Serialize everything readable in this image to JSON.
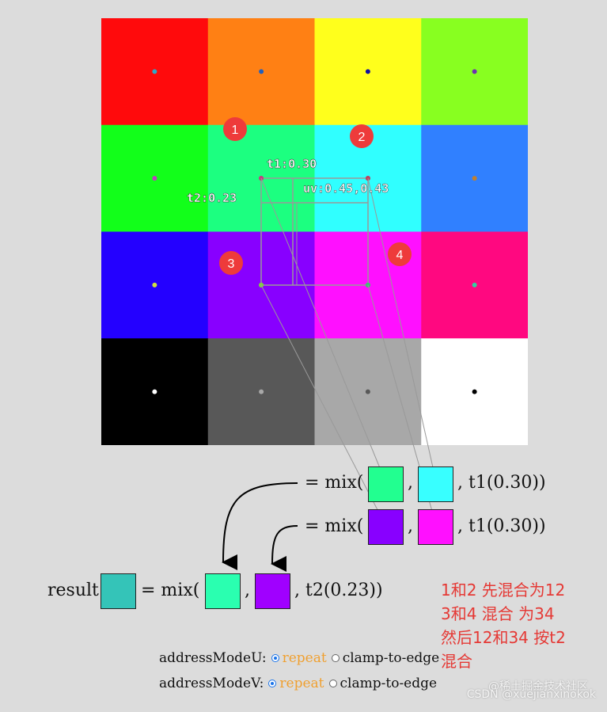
{
  "grid": {
    "rows": 4,
    "cols": 4,
    "cells": [
      {
        "color": "#ff0a0c",
        "dot": "#2fa8c8"
      },
      {
        "color": "#ff8014",
        "dot": "#2060c0"
      },
      {
        "color": "#ffff1c",
        "dot": "#1010a0"
      },
      {
        "color": "#88ff20",
        "dot": "#7030b0"
      },
      {
        "color": "#12ff1a",
        "dot": "#c040c0"
      },
      {
        "color": "#1cff80",
        "dot": "#c04080"
      },
      {
        "color": "#30ffff",
        "dot": "#c04060"
      },
      {
        "color": "#3080ff",
        "dot": "#c08030"
      },
      {
        "color": "#2400ff",
        "dot": "#d0e040"
      },
      {
        "color": "#8800ff",
        "dot": "#80d040"
      },
      {
        "color": "#ff10ff",
        "dot": "#40c070"
      },
      {
        "color": "#ff0880",
        "dot": "#30d0a0"
      },
      {
        "color": "#000000",
        "dot": "#ffffff"
      },
      {
        "color": "#585858",
        "dot": "#a8a8a8"
      },
      {
        "color": "#a8a8a8",
        "dot": "#585858"
      },
      {
        "color": "#ffffff",
        "dot": "#000000"
      }
    ]
  },
  "markers": [
    "1",
    "2",
    "3",
    "4"
  ],
  "labels": {
    "t1": "t1:0.30",
    "t2": "t2:0.23",
    "uv": "uv:0.45,0.43"
  },
  "colors": {
    "c1": "#22ff90",
    "c2": "#38ffff",
    "c3": "#8800ff",
    "c4": "#ff10ff",
    "c12": "#2affb0",
    "c34": "#a000ff",
    "result": "#34c4b8",
    "marker": "#ee3b3b"
  },
  "equations": {
    "eq_prefix": "= mix(",
    "comma": ",",
    "t1_arg": ", t1(0.30))",
    "t2_arg": ", t2(0.23))",
    "result_label": "result"
  },
  "note": {
    "lines": [
      "1和2 先混合为12",
      "3和4 混合 为34",
      "然后12和34 按t2",
      "混合"
    ]
  },
  "controls": {
    "u_label": "addressModeU:",
    "v_label": "addressModeV:",
    "repeat": "repeat",
    "clamp": "clamp-to-edge"
  },
  "watermark": "CSDN @xuejianxinokok",
  "watermark2": "@稀土掘金技术社区"
}
